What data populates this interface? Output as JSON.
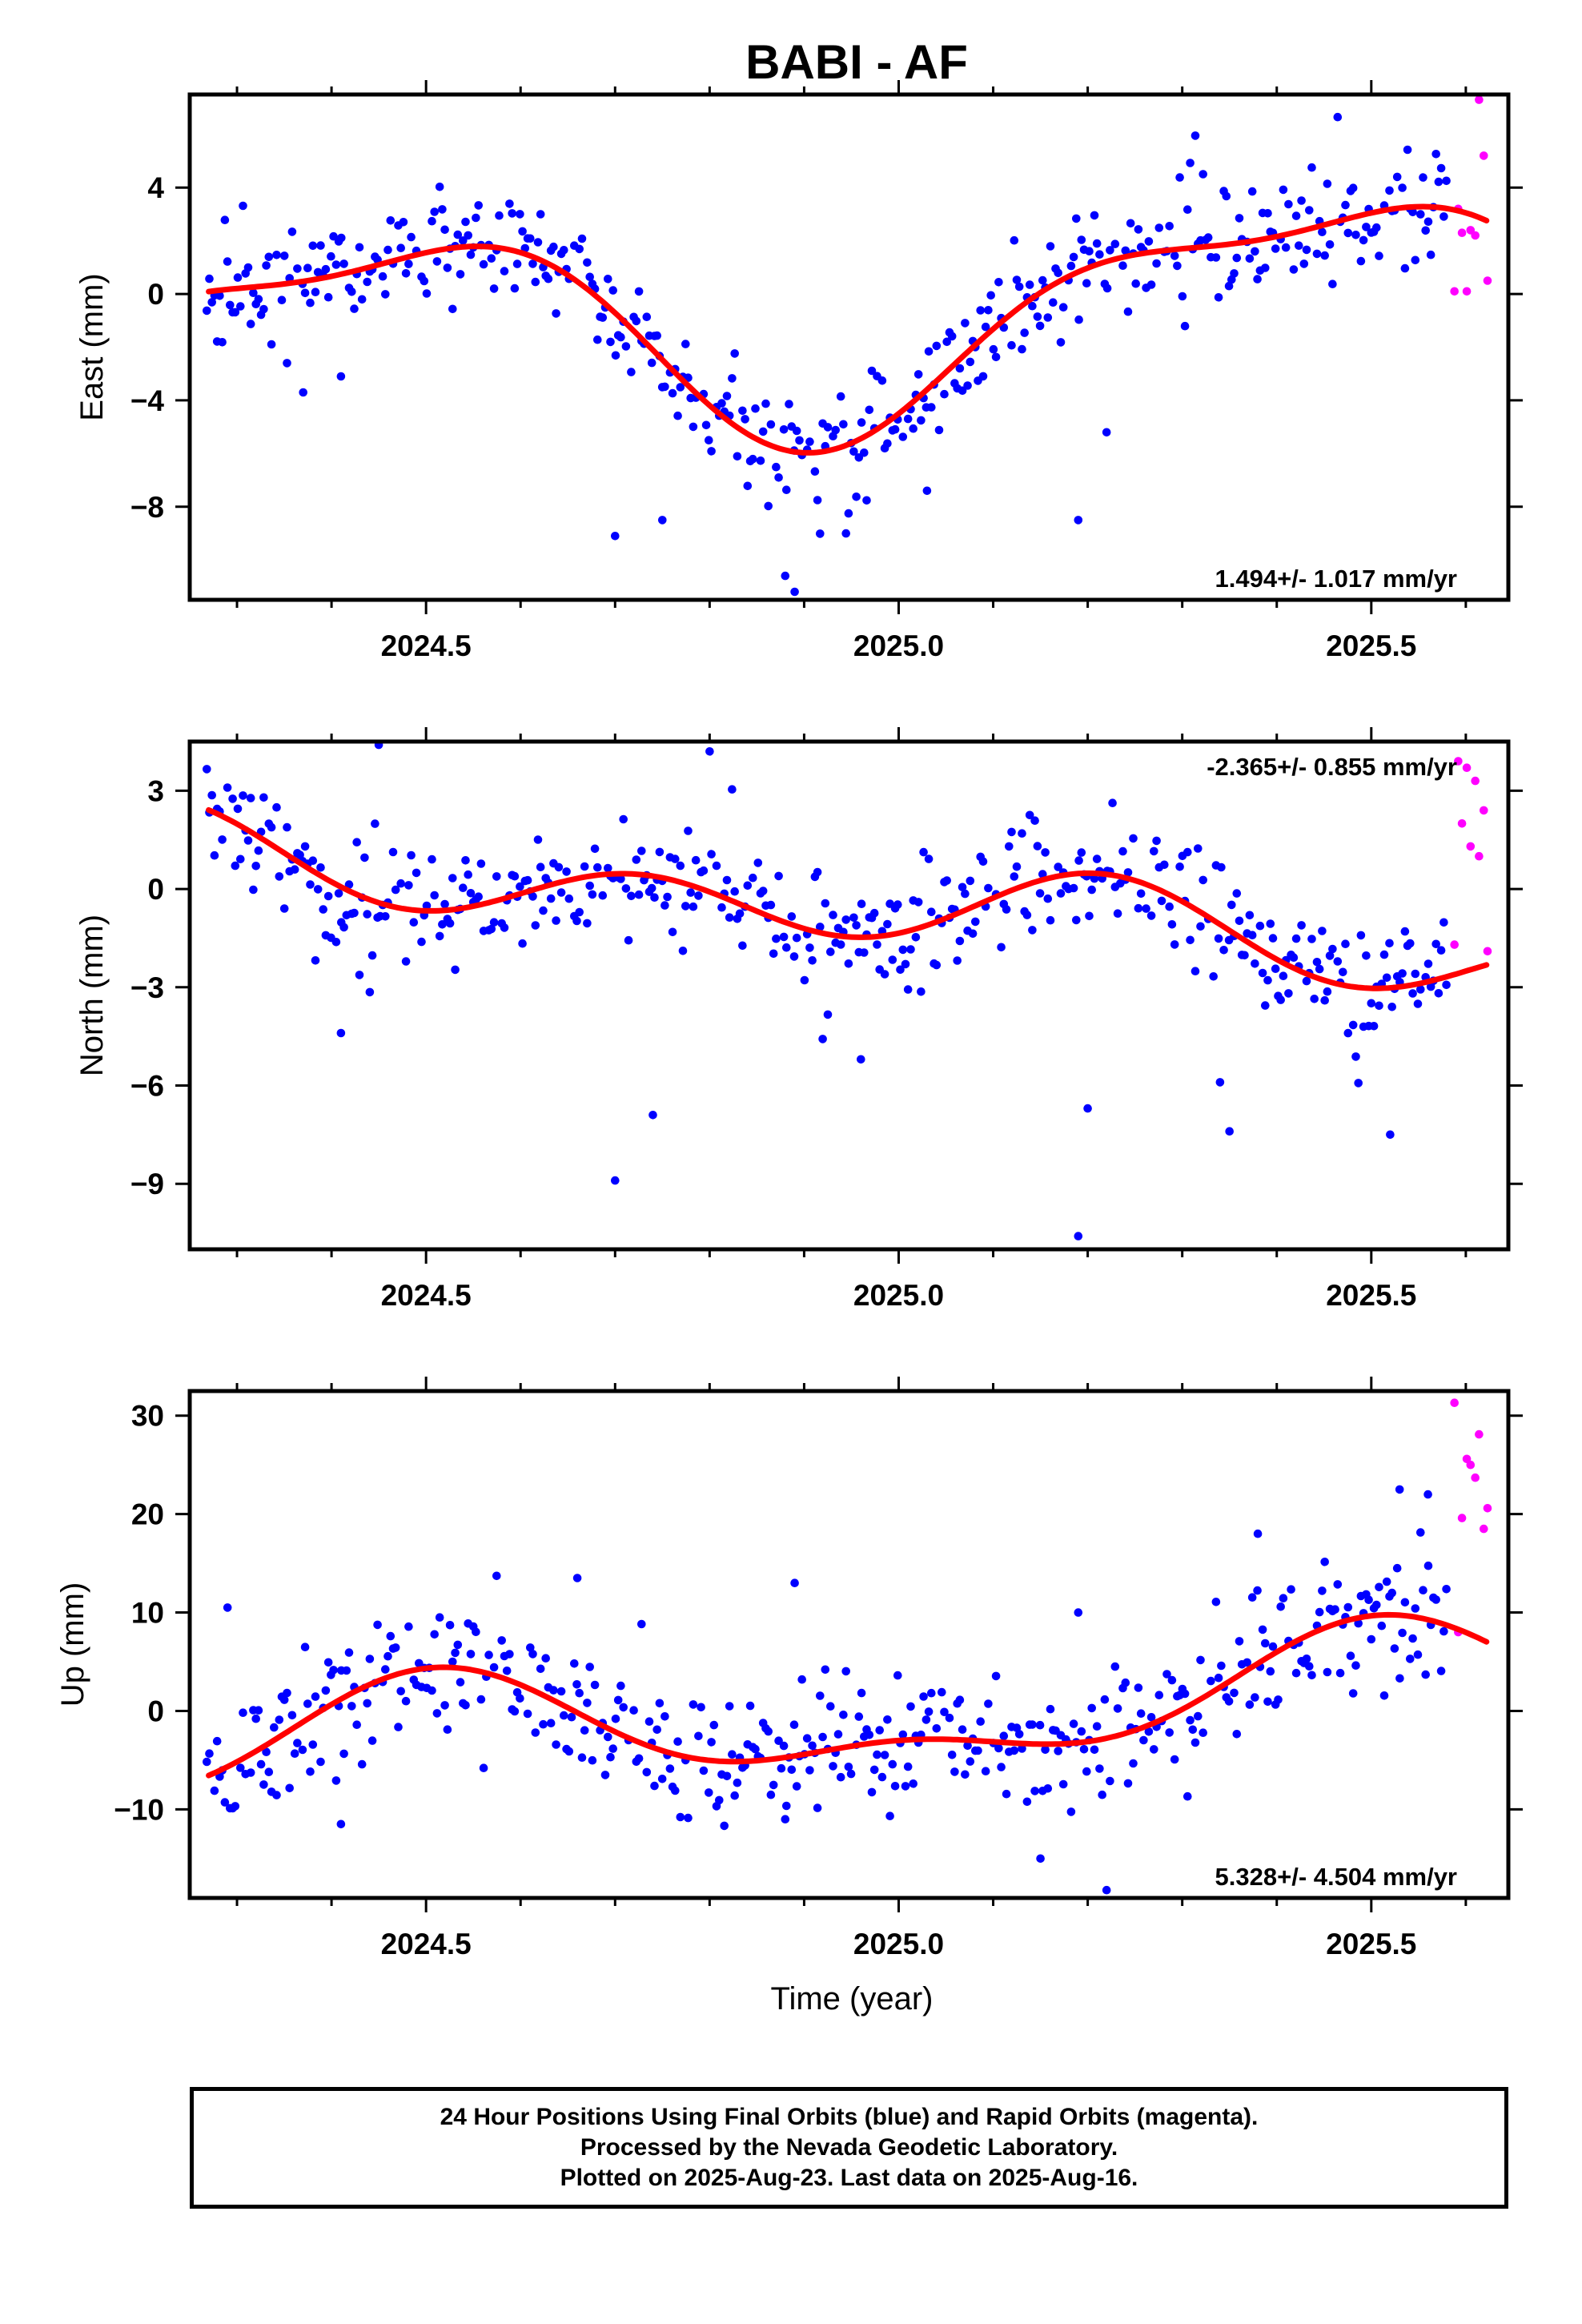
{
  "colors": {
    "final": "#0000ff",
    "rapid": "#ff00ff",
    "model": "#ff0000",
    "axis": "#000000"
  },
  "chart_data": {
    "type": "scatter",
    "title": "BABI - AF",
    "xlabel": "Time (year)",
    "xlim": [
      2024.25,
      2025.645
    ],
    "xticks": [
      "2024.5",
      "2025.0",
      "2025.5"
    ],
    "final_end": 2025.58,
    "panels": [
      {
        "key": "east",
        "ylabel": "East (mm)",
        "ylim": [
          -11.5,
          7.5
        ],
        "yticks": [
          "4",
          "0",
          "−4",
          "−8"
        ],
        "rate": "1.494+/- 1.017 mm/yr",
        "rate_position": "bottom-right",
        "model": {
          "offset": -0.8,
          "trend": 1.494,
          "annual_sin": 1.6,
          "annual_cos": -3.4,
          "semi_sin": 1.3,
          "semi_cos": -0.3
        },
        "scatter_mm": 1.1,
        "rapid": [
          {
            "x": 2025.588,
            "y": 0.1
          },
          {
            "x": 2025.592,
            "y": 3.2
          },
          {
            "x": 2025.596,
            "y": 2.3
          },
          {
            "x": 2025.601,
            "y": 0.1
          },
          {
            "x": 2025.605,
            "y": 2.4
          },
          {
            "x": 2025.61,
            "y": 2.2
          },
          {
            "x": 2025.614,
            "y": 7.3
          },
          {
            "x": 2025.619,
            "y": 5.2
          },
          {
            "x": 2025.623,
            "y": 0.5
          }
        ],
        "outliers": [
          {
            "x": 2024.7,
            "y": -9.1
          },
          {
            "x": 2024.75,
            "y": -8.5
          },
          {
            "x": 2024.88,
            "y": -10.6
          },
          {
            "x": 2024.89,
            "y": -11.2
          },
          {
            "x": 2025.19,
            "y": -8.5
          },
          {
            "x": 2025.03,
            "y": -7.4
          },
          {
            "x": 2024.37,
            "y": -3.7
          },
          {
            "x": 2024.41,
            "y": -3.1
          },
          {
            "x": 2025.22,
            "y": -5.2
          }
        ]
      },
      {
        "key": "north",
        "ylabel": "North (mm)",
        "ylim": [
          -11,
          4.5
        ],
        "yticks": [
          "3",
          "0",
          "−3",
          "−6",
          "−9"
        ],
        "rate": "-2.365+/- 0.855 mm/yr",
        "rate_position": "top-right",
        "model": {
          "offset": -0.65,
          "trend": -2.365,
          "annual_sin": 0.55,
          "annual_cos": 0.25,
          "semi_sin": 0.4,
          "semi_cos": -0.95
        },
        "scatter_mm": 0.95,
        "rapid": [
          {
            "x": 2025.588,
            "y": -1.7
          },
          {
            "x": 2025.592,
            "y": 3.9
          },
          {
            "x": 2025.596,
            "y": 2.0
          },
          {
            "x": 2025.601,
            "y": 3.7
          },
          {
            "x": 2025.605,
            "y": 1.3
          },
          {
            "x": 2025.61,
            "y": 3.3
          },
          {
            "x": 2025.614,
            "y": 1.0
          },
          {
            "x": 2025.619,
            "y": 2.4
          },
          {
            "x": 2025.623,
            "y": -1.9
          }
        ],
        "outliers": [
          {
            "x": 2024.7,
            "y": -8.9
          },
          {
            "x": 2024.74,
            "y": -6.9
          },
          {
            "x": 2025.19,
            "y": -10.6
          },
          {
            "x": 2025.2,
            "y": -6.7
          },
          {
            "x": 2025.34,
            "y": -5.9
          },
          {
            "x": 2025.35,
            "y": -7.4
          },
          {
            "x": 2025.52,
            "y": -7.5
          },
          {
            "x": 2024.41,
            "y": -4.4
          },
          {
            "x": 2024.96,
            "y": -5.2
          },
          {
            "x": 2024.45,
            "y": 4.4
          },
          {
            "x": 2024.8,
            "y": 4.2
          }
        ]
      },
      {
        "key": "up",
        "ylabel": "Up (mm)",
        "ylim": [
          -19,
          32.5
        ],
        "yticks": [
          "30",
          "20",
          "10",
          "0",
          "−10"
        ],
        "rate": "5.328+/- 4.504 mm/yr",
        "rate_position": "bottom-right",
        "model": {
          "offset": -0.5,
          "trend": 5.328,
          "annual_sin": -0.3,
          "annual_cos": -5.0,
          "semi_sin": 0.3,
          "semi_cos": 2.5
        },
        "scatter_mm": 3.2,
        "rapid": [
          {
            "x": 2025.588,
            "y": 31.3
          },
          {
            "x": 2025.592,
            "y": 8.0
          },
          {
            "x": 2025.596,
            "y": 19.6
          },
          {
            "x": 2025.601,
            "y": 25.6
          },
          {
            "x": 2025.605,
            "y": 25.0
          },
          {
            "x": 2025.61,
            "y": 23.7
          },
          {
            "x": 2025.614,
            "y": 28.1
          },
          {
            "x": 2025.619,
            "y": 18.5
          },
          {
            "x": 2025.623,
            "y": 20.6
          }
        ],
        "outliers": [
          {
            "x": 2025.22,
            "y": -18.2
          },
          {
            "x": 2025.15,
            "y": -15.0
          },
          {
            "x": 2025.38,
            "y": 18.0
          },
          {
            "x": 2025.56,
            "y": 22.0
          },
          {
            "x": 2025.53,
            "y": 22.5
          },
          {
            "x": 2024.29,
            "y": 10.5
          },
          {
            "x": 2024.66,
            "y": 13.5
          },
          {
            "x": 2024.89,
            "y": 13.0
          },
          {
            "x": 2025.19,
            "y": 10.0
          },
          {
            "x": 2024.41,
            "y": -11.5
          },
          {
            "x": 2024.88,
            "y": -11.0
          }
        ]
      }
    ]
  },
  "footer": {
    "line1": "24 Hour Positions Using Final Orbits (blue) and Rapid Orbits (magenta).",
    "line2": "Processed by the Nevada Geodetic Laboratory.",
    "line3": "Plotted on 2025-Aug-23. Last data on 2025-Aug-16."
  }
}
